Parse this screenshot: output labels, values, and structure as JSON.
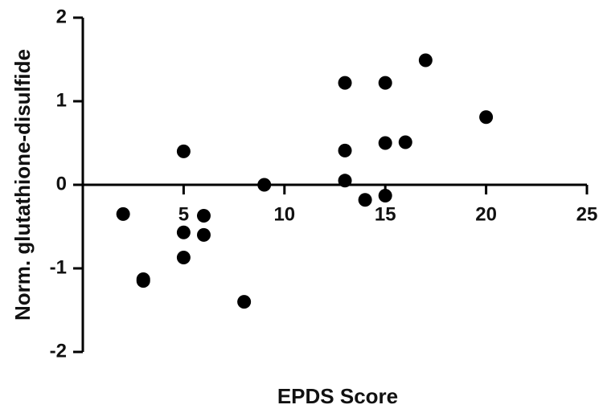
{
  "chart_data": {
    "type": "scatter",
    "xlabel": "EPDS Score",
    "ylabel": "Norm. glutathione-disulfide",
    "x": [
      2,
      3,
      3,
      5,
      5,
      5,
      6,
      6,
      8,
      9,
      13,
      13,
      13,
      14,
      15,
      15,
      15,
      16,
      17,
      20
    ],
    "y": [
      -0.35,
      -1.13,
      -1.15,
      0.4,
      -0.57,
      -0.87,
      -0.37,
      -0.6,
      -1.4,
      0,
      1.22,
      0.41,
      0.05,
      -0.18,
      1.22,
      0.5,
      -0.13,
      0.51,
      1.49,
      0.81
    ],
    "color": "#000000",
    "xlim": [
      0,
      25
    ],
    "xticks": [
      5,
      10,
      15,
      20,
      25
    ],
    "ylim": [
      -2,
      2
    ],
    "yticks": [
      -2,
      -1,
      0,
      1,
      2
    ]
  }
}
